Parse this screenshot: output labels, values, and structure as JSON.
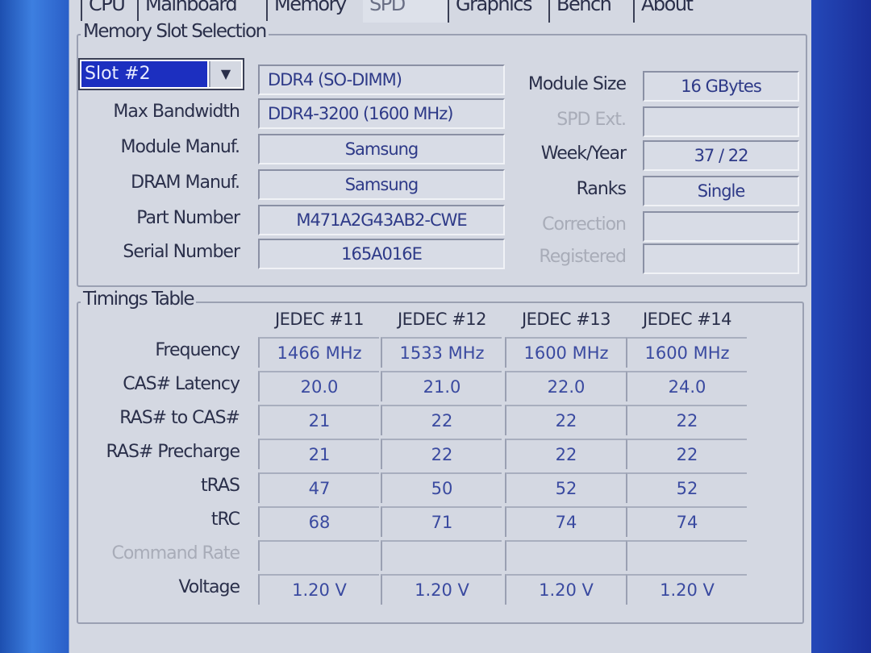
{
  "tabs": [
    "CPU",
    "Mainboard",
    "Memory",
    "SPD",
    "Graphics",
    "Bench",
    "About"
  ],
  "active_tab": "SPD",
  "slot_group": {
    "title": "Memory Slot Selection",
    "slot_selected": "Slot #2",
    "memory_type": "DDR4 (SO-DIMM)",
    "labels_left": [
      "Max Bandwidth",
      "Module Manuf.",
      "DRAM Manuf.",
      "Part Number",
      "Serial Number"
    ],
    "values_left": [
      "DDR4-3200 (1600 MHz)",
      "Samsung",
      "Samsung",
      "M471A2G43AB2-CWE",
      "165A016E"
    ],
    "labels_right": [
      "Module Size",
      "SPD Ext.",
      "Week/Year",
      "Ranks",
      "Correction",
      "Registered"
    ],
    "values_right": [
      "16 GBytes",
      "",
      "37 / 22",
      "Single",
      "",
      ""
    ]
  },
  "timings": {
    "title": "Timings Table",
    "columns": [
      "JEDEC #11",
      "JEDEC #12",
      "JEDEC #13",
      "JEDEC #14"
    ],
    "rows": [
      {
        "label": "Frequency",
        "values": [
          "1466 MHz",
          "1533 MHz",
          "1600 MHz",
          "1600 MHz"
        ]
      },
      {
        "label": "CAS# Latency",
        "values": [
          "20.0",
          "21.0",
          "22.0",
          "24.0"
        ]
      },
      {
        "label": "RAS# to CAS#",
        "values": [
          "21",
          "22",
          "22",
          "22"
        ]
      },
      {
        "label": "RAS# Precharge",
        "values": [
          "21",
          "22",
          "22",
          "22"
        ]
      },
      {
        "label": "tRAS",
        "values": [
          "47",
          "50",
          "52",
          "52"
        ]
      },
      {
        "label": "tRC",
        "values": [
          "68",
          "71",
          "74",
          "74"
        ]
      },
      {
        "label": "Command Rate",
        "values": [
          "",
          "",
          "",
          ""
        ]
      },
      {
        "label": "Voltage",
        "values": [
          "1.20 V",
          "1.20 V",
          "1.20 V",
          "1.20 V"
        ]
      }
    ]
  }
}
